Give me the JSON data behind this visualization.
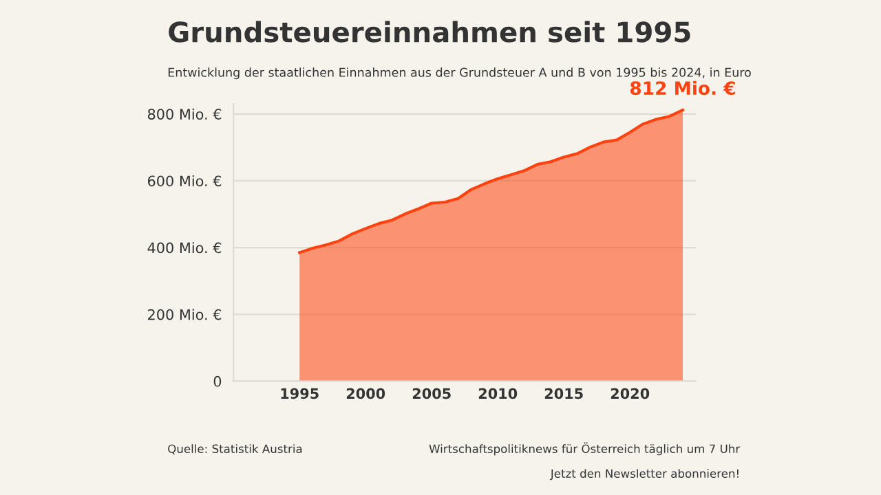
{
  "chart_data": {
    "type": "area",
    "title": "Grundsteuereinnahmen seit 1995",
    "subtitle": "Entwicklung der staatlichen Einnahmen aus der Grundsteuer A und B von 1995 bis 2024, in Euro",
    "x": [
      1995,
      1996,
      1997,
      1998,
      1999,
      2000,
      2001,
      2002,
      2003,
      2004,
      2005,
      2006,
      2007,
      2008,
      2009,
      2010,
      2011,
      2012,
      2013,
      2014,
      2015,
      2016,
      2017,
      2018,
      2019,
      2020,
      2021,
      2022,
      2023,
      2024
    ],
    "series": [
      {
        "color": "#ff4310",
        "values": [
          385,
          398,
          408,
          420,
          441,
          457,
          472,
          482,
          501,
          516,
          533,
          536,
          547,
          574,
          591,
          606,
          618,
          630,
          649,
          657,
          671,
          681,
          701,
          716,
          722,
          745,
          770,
          784,
          793,
          812
        ]
      }
    ],
    "xlim": [
      1990,
      2025
    ],
    "xticks": [
      1995,
      2000,
      2005,
      2010,
      2015,
      2020
    ],
    "ylim": [
      0,
      830
    ],
    "yticks": [
      0,
      {
        "value": 200,
        "label": "200 Mio. €"
      },
      {
        "value": 400,
        "label": "400 Mio. €"
      },
      {
        "value": 600,
        "label": "600 Mio. €"
      },
      {
        "value": 800,
        "label": "800 Mio. €"
      }
    ],
    "grid": "y",
    "annotations": [
      {
        "text": "812 Mio. €",
        "x": 2024,
        "y": 812
      },
      "Quelle: Statistik Austria",
      "Wirtschaftspolitiknews für Österreich täglich um 7 Uhr",
      "Jetzt den Newsletter abonnieren!"
    ]
  }
}
